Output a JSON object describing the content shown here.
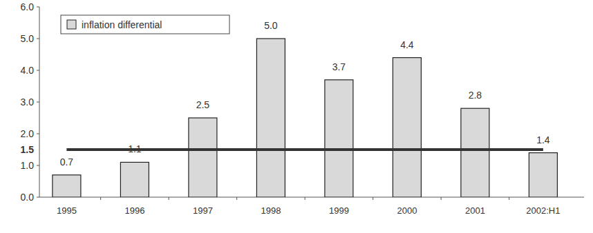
{
  "chart_data": {
    "type": "bar",
    "categories": [
      "1995",
      "1996",
      "1997",
      "1998",
      "1999",
      "2000",
      "2001",
      "2002:H1"
    ],
    "series": [
      {
        "name": "inflation differential",
        "color": "#d9d9d9",
        "values": [
          0.7,
          1.1,
          2.5,
          5.0,
          3.7,
          4.4,
          2.8,
          1.4
        ],
        "value_labels": [
          "0.7",
          "1.1",
          "2.5",
          "5.0",
          "3.7",
          "4.4",
          "2.8",
          "1.4"
        ]
      }
    ],
    "ylim": [
      0,
      6
    ],
    "yticks": [
      {
        "value": 0,
        "label": "0.0"
      },
      {
        "value": 1,
        "label": "1.0"
      },
      {
        "value": 2,
        "label": "2.0"
      },
      {
        "value": 3,
        "label": "3.0"
      },
      {
        "value": 4,
        "label": "4.0"
      },
      {
        "value": 5,
        "label": "5.0"
      },
      {
        "value": 6,
        "label": "6.0"
      }
    ],
    "reference_line": {
      "value": 1.5,
      "label": "1.5"
    },
    "data_labels": true,
    "legend": "top-left",
    "grid": false
  }
}
